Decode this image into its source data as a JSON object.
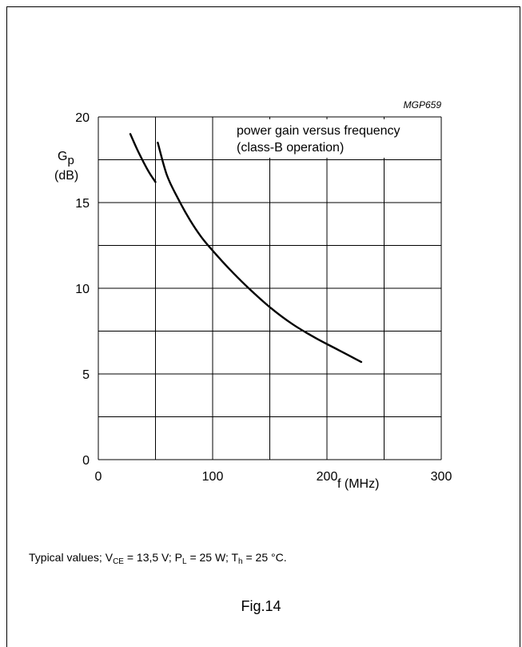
{
  "chart_data": {
    "type": "line",
    "code": "MGP659",
    "annotation": [
      "power gain versus frequency",
      "(class-B operation)"
    ],
    "ylabel": {
      "symbol": "G",
      "subscript": "p",
      "unit": "(dB)"
    },
    "xlabel": "f (MHz)",
    "xlim": [
      0,
      300
    ],
    "ylim": [
      0,
      20
    ],
    "x_ticks": [
      "0",
      "100",
      "200",
      "300"
    ],
    "y_ticks": [
      "0",
      "5",
      "10",
      "15",
      "20"
    ],
    "grid": true,
    "series": [
      {
        "x": [
          28,
          34,
          40,
          45,
          50
        ],
        "y": [
          19.0,
          18.1,
          17.3,
          16.7,
          16.2
        ]
      },
      {
        "x": [
          52,
          60,
          70,
          80,
          90,
          100,
          115,
          130,
          150,
          170,
          190,
          210,
          230
        ],
        "y": [
          18.5,
          16.6,
          15.2,
          14.0,
          13.0,
          12.2,
          11.1,
          10.1,
          8.9,
          7.9,
          7.1,
          6.4,
          5.7
        ]
      }
    ]
  },
  "caption": {
    "prefix": "Typical values; V",
    "vce_sub": "CE",
    "vce_val": " = 13,5 V; P",
    "pl_sub": "L",
    "pl_val": " = 25 W; T",
    "th_sub": "h",
    "th_val": " = 25 °C."
  },
  "figure": "Fig.14"
}
